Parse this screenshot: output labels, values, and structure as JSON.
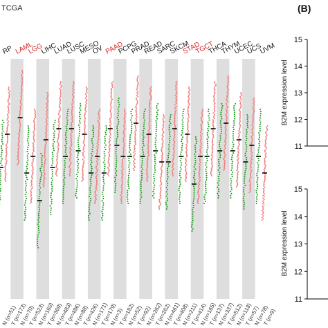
{
  "header_text": "TCGA",
  "panel_b_label": "(B)",
  "colors": {
    "tumor": "#f08080",
    "normal": "#1a9a1a",
    "highlight_label": "#d42020",
    "band": "#dedede",
    "median": "#000000"
  },
  "chart_data": [
    {
      "type": "scatter",
      "title": "",
      "xlabel": "",
      "ylabel": "",
      "grid": "alternating vertical bands",
      "categories": [
        "RP",
        "LAML",
        "LGG",
        "LIHC",
        "LUAD",
        "LUSC",
        "MESO",
        "OV",
        "PAAD",
        "PCPG",
        "PRAD",
        "READ",
        "SARC",
        "SKCM",
        "STAD",
        "TGCT",
        "THCA",
        "THYM",
        "UCEC",
        "UCS",
        "UVM"
      ],
      "highlighted": [
        "LAML",
        "LGG",
        "PAAD",
        "STAD",
        "TGCT"
      ],
      "bottom_labels": [
        "N (n=51)",
        "T (n=173)",
        "N (n=70)",
        "T (n=523)",
        "N (n=160)",
        "T (n=369)",
        "N (n=483)",
        "T (n=486)",
        "N (n=88)",
        "T (n=426)",
        "N (n=171)",
        "T (n=179)",
        "N (n=3)",
        "T (n=182)",
        "N (n=52)",
        "T (n=92)",
        "N (n=262)",
        "T (n=262)",
        "N (n=461)",
        "T (n=408)",
        "N (n=211)",
        "T (n=414)",
        "N (n=165)",
        "T (n=137)",
        "N (n=337)",
        "T (n=512)",
        "N (n=118)",
        "T (n=57)",
        "N (n=78)",
        "T (n=9)"
      ],
      "series": [
        {
          "name": "",
          "color": "#f08080",
          "medians": [
            11.7,
            12.0,
            11.3,
            11.6,
            11.8,
            11.8,
            11.7,
            11.3,
            11.8,
            11.3,
            11.9,
            11.7,
            11.2,
            11.8,
            11.7,
            11.3,
            11.8,
            11.9,
            11.6,
            11.5,
            11.0
          ]
        },
        {
          "name": "",
          "color": "#1a9a1a",
          "medians": [
            11.1,
            null,
            11.0,
            10.5,
            11.1,
            11.3,
            11.4,
            11.0,
            11.0,
            11.5,
            11.3,
            11.3,
            11.4,
            11.2,
            11.3,
            10.8,
            11.3,
            11.4,
            11.4,
            11.2,
            11.3
          ]
        }
      ]
    },
    {
      "type": "scatter",
      "title": "",
      "ylabel": "B2M expression level",
      "yticks": [
        11,
        12,
        13,
        14,
        15
      ],
      "ylim": [
        11,
        15
      ]
    },
    {
      "type": "scatter",
      "title": "",
      "ylabel": "B2M expression level",
      "yticks": [
        11,
        12,
        13,
        14,
        15
      ],
      "ylim": [
        11,
        15
      ]
    }
  ]
}
